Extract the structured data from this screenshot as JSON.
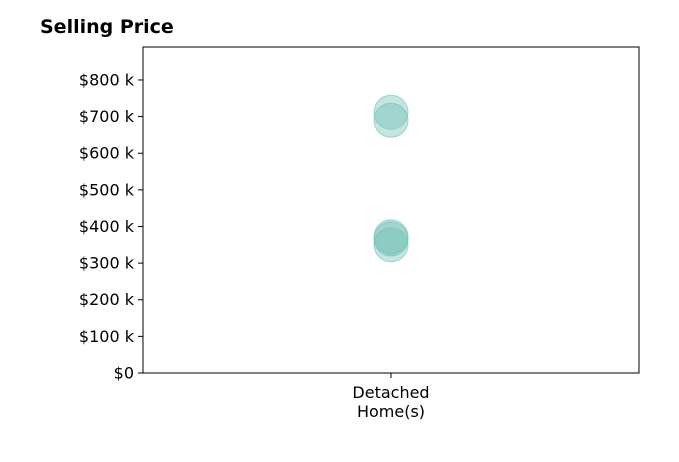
{
  "chart_data": {
    "type": "scatter",
    "title": "Selling Price",
    "xlabel": "",
    "ylabel": "",
    "categories": [
      "Detached\nHome(s)"
    ],
    "series": [
      {
        "category": "Detached\nHome(s)",
        "values": [
          712000,
          690000,
          372000,
          366000,
          350000
        ]
      }
    ],
    "yticks": [
      {
        "value": 0,
        "label": "$0"
      },
      {
        "value": 100000,
        "label": "$100 k"
      },
      {
        "value": 200000,
        "label": "$200 k"
      },
      {
        "value": 300000,
        "label": "$300 k"
      },
      {
        "value": 400000,
        "label": "$400 k"
      },
      {
        "value": 500000,
        "label": "$500 k"
      },
      {
        "value": 600000,
        "label": "$600 k"
      },
      {
        "value": 700000,
        "label": "$700 k"
      },
      {
        "value": 800000,
        "label": "$800 k"
      }
    ],
    "ylim": [
      0,
      890000
    ],
    "grid": false,
    "marker_color": "#6dbfb4"
  }
}
